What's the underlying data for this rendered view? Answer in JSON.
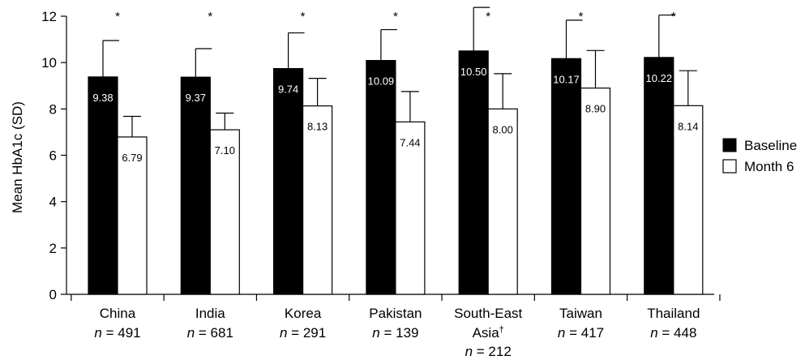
{
  "chart_data": {
    "type": "bar",
    "ylabel": "Mean HbA1c (SD)",
    "ylim": [
      0,
      12
    ],
    "yticks": [
      0,
      2,
      4,
      6,
      8,
      10,
      12
    ],
    "legend_position": "right",
    "categories": [
      {
        "name": "China",
        "n": "491"
      },
      {
        "name": "India",
        "n": "681"
      },
      {
        "name": "Korea",
        "n": "291"
      },
      {
        "name": "Pakistan",
        "n": "139"
      },
      {
        "name": "South-East",
        "name2": "Asia",
        "sup": "†",
        "n": "212"
      },
      {
        "name": "Taiwan",
        "n": "417"
      },
      {
        "name": "Thailand",
        "n": "448"
      }
    ],
    "n_prefix": "n",
    "n_eq": " = ",
    "significance_marker": "*",
    "series": [
      {
        "name": "Baseline",
        "color": "#000000",
        "values": [
          9.38,
          9.37,
          9.74,
          10.09,
          10.5,
          10.17,
          10.22
        ],
        "labels": [
          "9.38",
          "9.37",
          "9.74",
          "10.09",
          "10.50",
          "10.17",
          "10.22"
        ],
        "err_top": [
          10.95,
          10.6,
          11.28,
          11.42,
          12.38,
          11.83,
          12.05
        ]
      },
      {
        "name": "Month 6",
        "color": "#ffffff",
        "values": [
          6.79,
          7.1,
          8.13,
          7.44,
          8.0,
          8.9,
          8.14
        ],
        "labels": [
          "6.79",
          "7.10",
          "8.13",
          "7.44",
          "8.00",
          "8.90",
          "8.14"
        ],
        "err_top": [
          7.68,
          7.82,
          9.32,
          8.75,
          9.52,
          10.52,
          9.65
        ]
      }
    ]
  }
}
